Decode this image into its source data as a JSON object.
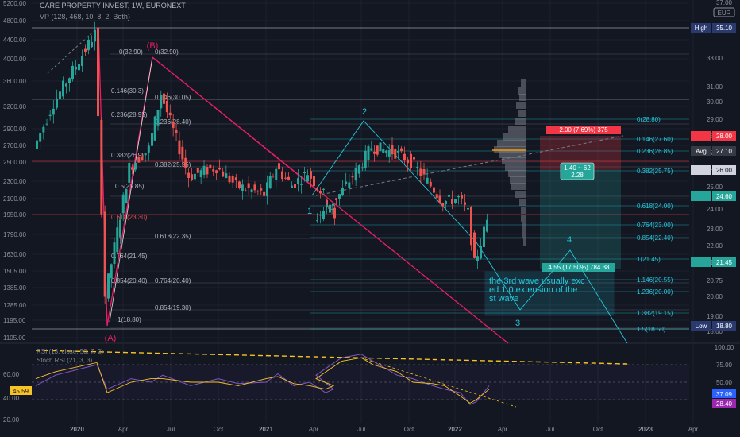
{
  "header": {
    "title": "CARE PROPERTY INVEST, 1W, EURONEXT",
    "vp": "VP (128, 468, 10, 8, 2, Both)",
    "rsi": "RSI (13, close, 50, 7, 2)",
    "macd": "Stoch RSI (21, 3, 3)",
    "currency": "EUR",
    "currency_top": "37.00"
  },
  "left_axis": [
    "5200.00",
    "4800.00",
    "4400.00",
    "4000.00",
    "3600.00",
    "3200.00",
    "2900.00",
    "2700.00",
    "2500.00",
    "2300.00",
    "2100.00",
    "1950.00",
    "1790.00",
    "1630.00",
    "1505.00",
    "1385.00",
    "1285.00",
    "1195.00",
    "1105.00"
  ],
  "right_axis": [
    "33.00",
    "31.00",
    "30.00",
    "29.00",
    "28.00",
    "27.00",
    "26.00",
    "25.00",
    "24.00",
    "23.00",
    "22.00",
    "21.00",
    "20.75",
    "20.00",
    "19.00",
    "18.00"
  ],
  "rsi_left_axis": [
    "60.00",
    "40.00",
    "20.00"
  ],
  "rsi_right_axis": [
    "100.00",
    "75.00",
    "50.00",
    "25.00"
  ],
  "time_axis": [
    "2020",
    "Apr",
    "Jul",
    "Oct",
    "2021",
    "Apr",
    "Jul",
    "Oct",
    "2022",
    "Apr",
    "Jul",
    "Oct",
    "2023",
    "Apr"
  ],
  "badges": {
    "high": {
      "label": "High",
      "value": "35.10"
    },
    "low": {
      "label": "Low",
      "value": "18.80"
    },
    "avg": {
      "label": "Avg",
      "value": "27.10"
    },
    "r28": "28.00",
    "r26": "26.00",
    "r246": "24.60",
    "r2145": "21.45",
    "rsi_left": "45.59",
    "rsi_r1": "37.09",
    "rsi_r2": "28.40"
  },
  "wave_labels": {
    "A": "(A)",
    "B": "(B)",
    "w1": "1",
    "w2": "2",
    "w3": "3",
    "w4": "4"
  },
  "fib_left": [
    "0(32.90)",
    "0(32.90)",
    "0.146(30.3)",
    "0.146(30.05)",
    "0.236(28.95)",
    "0.236(28.40)",
    "0.382(26.9)",
    "0.382(25.95)",
    "0.5(25.85)",
    "0.618(23.30)",
    "0.618(22.35)",
    "0.764(21.45)",
    "0.854(20.40)",
    "0.764(20.40)",
    "0.854(19.30)",
    "1(18.80)"
  ],
  "fib_right": [
    "0(28.80)",
    "0.146(27.60)",
    "0.236(26.85)",
    "0.382(25.75)",
    "0.618(24.00)",
    "0.764(23.00)",
    "0.854(22.40)",
    "1(21.45)",
    "1.146(20.55)",
    "1.236(20.00)",
    "1.382(19.15)",
    "1.5(18.50)"
  ],
  "positions": {
    "red_label": "2.00 (7.69%) 375",
    "mid_label": "1.40 ~ 62",
    "mid_label2": "2.28",
    "green_label": "4.55 (17.50%) 784.38"
  },
  "note": "the 3rd wave usually exceed 1.0 extension of the 1st wave",
  "colors": {
    "bg": "#131722",
    "up": "#26a69a",
    "down": "#ef5350",
    "fib_left": "#b2b5be",
    "fib_right": "#26c6da",
    "pink": "#e91e63",
    "rsi1": "#7e57c2",
    "rsi2": "#f7c325"
  },
  "chart_data": {
    "type": "line",
    "title": "CARE PROPERTY INVEST, 1W, EURONEXT",
    "xlabel": "",
    "ylabel": "",
    "x": [
      "2019-12",
      "2020-01",
      "2020-02",
      "2020-03",
      "2020-04",
      "2020-05",
      "2020-06",
      "2020-07",
      "2020-08",
      "2020-09",
      "2020-10",
      "2020-11",
      "2020-12",
      "2021-01",
      "2021-02",
      "2021-03",
      "2021-04",
      "2021-05",
      "2021-06",
      "2021-07",
      "2021-08",
      "2021-09",
      "2021-10",
      "2021-11",
      "2021-12",
      "2022-01",
      "2022-02",
      "2022-03"
    ],
    "series": [
      {
        "values": [
          28.5,
          31.0,
          34.8,
          20.5,
          27.5,
          28.5,
          31.5,
          27.0,
          27.5,
          26.5,
          26.0,
          27.5,
          26.5,
          27.2,
          26.0,
          25.0,
          24.6,
          26.0,
          27.5,
          28.6,
          28.3,
          27.8,
          26.5,
          25.6,
          25.8,
          25.0,
          22.2,
          24.6
        ]
      }
    ],
    "ylim": [
      17.5,
      36.5
    ],
    "grid": true
  }
}
